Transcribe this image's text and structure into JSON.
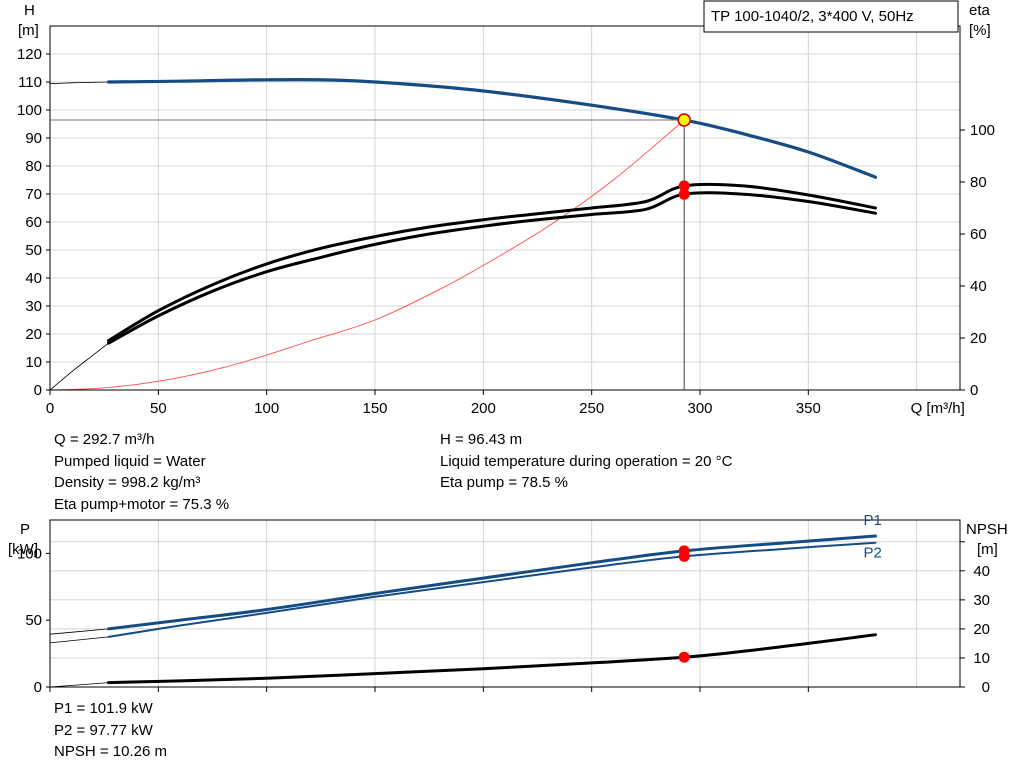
{
  "colors": {
    "head_curve": "#154c84",
    "power_curve": "#154c84",
    "efficiency_curve": "#000000",
    "npsh_curve": "#000000",
    "system_curve": "#ff4a4a",
    "duty_marker_fill": "#ffff00",
    "duty_marker_stroke": "#d40000",
    "point_marker": "#ff0000",
    "grid": "#d4d4d4",
    "axis": "#000000"
  },
  "chart_data": [
    {
      "id": "head_efficiency",
      "type": "line",
      "title": "TP 100-1040/2, 3*400 V, 50Hz",
      "xlabel": "Q [m³/h]",
      "ylabel_left": [
        "H",
        "[m]"
      ],
      "ylabel_right": [
        "eta",
        "[%]"
      ],
      "xlim": [
        0,
        420
      ],
      "ylim": [
        0,
        130
      ],
      "y2lim": [
        0,
        140
      ],
      "x_ticks": [
        "0",
        "50",
        "100",
        "150",
        "200",
        "250",
        "300",
        "350"
      ],
      "y_ticks": [
        "0",
        "10",
        "20",
        "30",
        "40",
        "50",
        "60",
        "70",
        "80",
        "90",
        "100",
        "110",
        "120"
      ],
      "y2_ticks": [
        "0",
        "20",
        "40",
        "60",
        "80",
        "100"
      ],
      "grid": true,
      "series": [
        {
          "key": "head",
          "axis": "left",
          "x": [
            27,
            60,
            100,
            130,
            160,
            200,
            250,
            292.7,
            320,
            350,
            381
          ],
          "y": [
            110.0,
            110.3,
            110.8,
            110.7,
            109.5,
            106.8,
            101.7,
            96.4,
            91.5,
            85.0,
            76.0
          ]
        },
        {
          "key": "head_extension",
          "axis": "left",
          "x": [
            0,
            10,
            20,
            27
          ],
          "y": [
            109.4,
            109.7,
            109.9,
            110.0
          ]
        },
        {
          "key": "eta_pump",
          "axis": "right",
          "x": [
            27,
            50,
            75,
            100,
            125,
            150,
            175,
            200,
            225,
            250,
            275,
            292.7,
            320,
            350,
            381
          ],
          "y": [
            19.0,
            30.5,
            40.5,
            48.5,
            54.5,
            59.0,
            62.7,
            65.5,
            67.8,
            70.0,
            72.5,
            78.5,
            78.5,
            75.0,
            70.0
          ]
        },
        {
          "key": "eta_total",
          "axis": "right",
          "x": [
            27,
            50,
            75,
            100,
            125,
            150,
            175,
            200,
            225,
            250,
            275,
            292.7,
            320,
            350,
            381
          ],
          "y": [
            18.0,
            28.5,
            38.0,
            45.5,
            51.0,
            56.0,
            60.0,
            63.0,
            65.5,
            67.5,
            69.5,
            75.3,
            75.3,
            72.5,
            68.0
          ]
        },
        {
          "key": "eta_extension",
          "axis": "right",
          "x": [
            0,
            10,
            20,
            27
          ],
          "y": [
            0,
            7.0,
            13.5,
            18.0
          ]
        },
        {
          "key": "system_curve",
          "axis": "left",
          "x": [
            0,
            20,
            40,
            60,
            80,
            100,
            120,
            150,
            180,
            200,
            230,
            260,
            292.7
          ],
          "y": [
            0,
            0.5,
            2.0,
            4.5,
            8.0,
            12.5,
            17.5,
            25.0,
            36.0,
            44.5,
            58.5,
            75.0,
            96.4
          ]
        }
      ],
      "duty_point": {
        "x": 292.7,
        "y": 96.43
      },
      "eta_points": [
        {
          "x": 292.7,
          "y": 78.5
        },
        {
          "x": 292.7,
          "y": 75.3
        }
      ]
    },
    {
      "id": "power_npsh",
      "type": "line",
      "ylabel_left": [
        "P",
        "[kW]"
      ],
      "ylabel_right": [
        "NPSH",
        "[m]"
      ],
      "xlim": [
        0,
        420
      ],
      "ylim": [
        0,
        125
      ],
      "y2lim": [
        0,
        57.5
      ],
      "y_ticks": [
        "0",
        "50",
        "100"
      ],
      "y2_ticks": [
        "0",
        "10",
        "20",
        "30",
        "40",
        "50"
      ],
      "y2_label_ticks": [
        "0",
        "10",
        "20",
        "30",
        "40"
      ],
      "grid": true,
      "series": [
        {
          "key": "p1",
          "axis": "left",
          "name": "P1",
          "x": [
            0,
            27,
            60,
            100,
            150,
            200,
            250,
            292.7,
            340,
            381
          ],
          "y": [
            39.5,
            43.5,
            50.0,
            58.0,
            70.0,
            81.5,
            93.0,
            101.9,
            108.0,
            113.0
          ]
        },
        {
          "key": "p2",
          "axis": "left",
          "name": "P2",
          "x": [
            0,
            27,
            60,
            100,
            150,
            200,
            250,
            292.7,
            340,
            381
          ],
          "y": [
            33.0,
            37.5,
            46.0,
            55.5,
            67.5,
            78.5,
            89.5,
            97.77,
            103.5,
            108.0
          ]
        },
        {
          "key": "npsh",
          "axis": "right",
          "x": [
            0,
            27,
            60,
            100,
            150,
            200,
            250,
            292.7,
            320,
            350,
            381
          ],
          "y": [
            0,
            1.5,
            2.1,
            3.0,
            4.6,
            6.3,
            8.3,
            10.26,
            12.3,
            15.0,
            18.0
          ]
        }
      ],
      "points": [
        {
          "axis": "left",
          "x": 292.7,
          "y": 101.9
        },
        {
          "axis": "left",
          "x": 292.7,
          "y": 97.77
        },
        {
          "axis": "right",
          "x": 292.7,
          "y": 10.26
        }
      ]
    }
  ],
  "duty_info": {
    "left": [
      "Q = 292.7 m³/h",
      "Pumped liquid = Water",
      "Density = 998.2 kg/m³",
      "Eta pump+motor = 75.3 %"
    ],
    "right": [
      "H = 96.43 m",
      "Liquid temperature during operation = 20 °C",
      "Eta pump = 78.5 %"
    ]
  },
  "power_info": [
    "P1 = 101.9 kW",
    "P2 = 97.77 kW",
    "NPSH = 10.26 m"
  ]
}
